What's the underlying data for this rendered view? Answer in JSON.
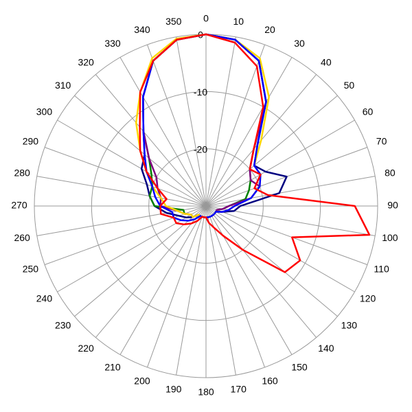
{
  "chart_data": {
    "type": "polar",
    "x": [
      0,
      10,
      20,
      30,
      40,
      50,
      60,
      70,
      80,
      90,
      100,
      110,
      120,
      130,
      140,
      150,
      160,
      170,
      180,
      190,
      200,
      210,
      220,
      230,
      240,
      250,
      260,
      270,
      280,
      290,
      300,
      310,
      320,
      330,
      340,
      350
    ],
    "ylim": [
      -30,
      0
    ],
    "yticks": [
      -20,
      -10,
      0
    ],
    "grid": true,
    "series": [
      {
        "color": "#000080",
        "values": [
          0,
          -0.5,
          -3,
          -9,
          -16,
          -19,
          -18,
          -15,
          -17,
          -24,
          -25,
          -27,
          -28,
          -28,
          -28,
          -28,
          -28,
          -28,
          -28,
          -28,
          -28,
          -28,
          -28,
          -27,
          -26,
          -25,
          -23,
          -21,
          -20,
          -19,
          -17,
          -16,
          -13,
          -8,
          -3,
          -0.5
        ]
      },
      {
        "color": "#008000",
        "values": [
          0,
          -0.5,
          -3,
          -9,
          -17,
          -20,
          -21,
          -22,
          -23,
          -26,
          -27,
          -28,
          -28,
          -28,
          -28,
          -28,
          -28,
          -28,
          -28,
          -28,
          -28,
          -28,
          -28,
          -27,
          -27,
          -26,
          -26,
          -21,
          -20,
          -20,
          -19,
          -17,
          -13,
          -8,
          -3,
          -0.5
        ]
      },
      {
        "color": "#800080",
        "values": [
          0,
          -0.5,
          -3,
          -9,
          -17,
          -20,
          -21,
          -20,
          -22,
          -26,
          -27,
          -28,
          -28,
          -28,
          -28,
          -28,
          -28,
          -28,
          -28,
          -28,
          -28,
          -28,
          -28,
          -27,
          -27,
          -26,
          -25,
          -22,
          -22,
          -21,
          -20,
          -17,
          -13,
          -8,
          -3,
          -0.5
        ]
      },
      {
        "color": "#ffd700",
        "values": [
          0,
          -0.5,
          -2.5,
          -8,
          -15,
          -19,
          -19,
          -20,
          -22,
          -25,
          -26,
          -27,
          -28,
          -28,
          -28,
          -28,
          -28,
          -28,
          -28,
          -28,
          -28,
          -28,
          -28,
          -27,
          -27,
          -26,
          -25,
          -23,
          -22,
          -20,
          -18,
          -15,
          -11,
          -7,
          -2.5,
          -0.3
        ]
      },
      {
        "color": "#0000ff",
        "values": [
          0,
          -0.5,
          -3,
          -9,
          -16,
          -19,
          -19,
          -20,
          -22,
          -25,
          -26,
          -27,
          -28,
          -28,
          -28,
          -28,
          -28,
          -28,
          -28,
          -28,
          -28,
          -28,
          -27,
          -26,
          -25,
          -24,
          -24,
          -22,
          -21,
          -20,
          -18,
          -16,
          -13,
          -8,
          -3,
          -0.5
        ]
      },
      {
        "color": "#ff0000",
        "values": [
          0,
          -1,
          -4,
          -10,
          -17,
          -20,
          -19,
          -21,
          -19,
          -4,
          -1,
          -14,
          -11,
          -12,
          -20,
          -24,
          -26,
          -27,
          -28,
          -28,
          -28,
          -27,
          -26,
          -25,
          -24,
          -24,
          -22,
          -22,
          -23,
          -21,
          -18,
          -15,
          -12,
          -7,
          -3,
          -0.5
        ]
      }
    ]
  }
}
